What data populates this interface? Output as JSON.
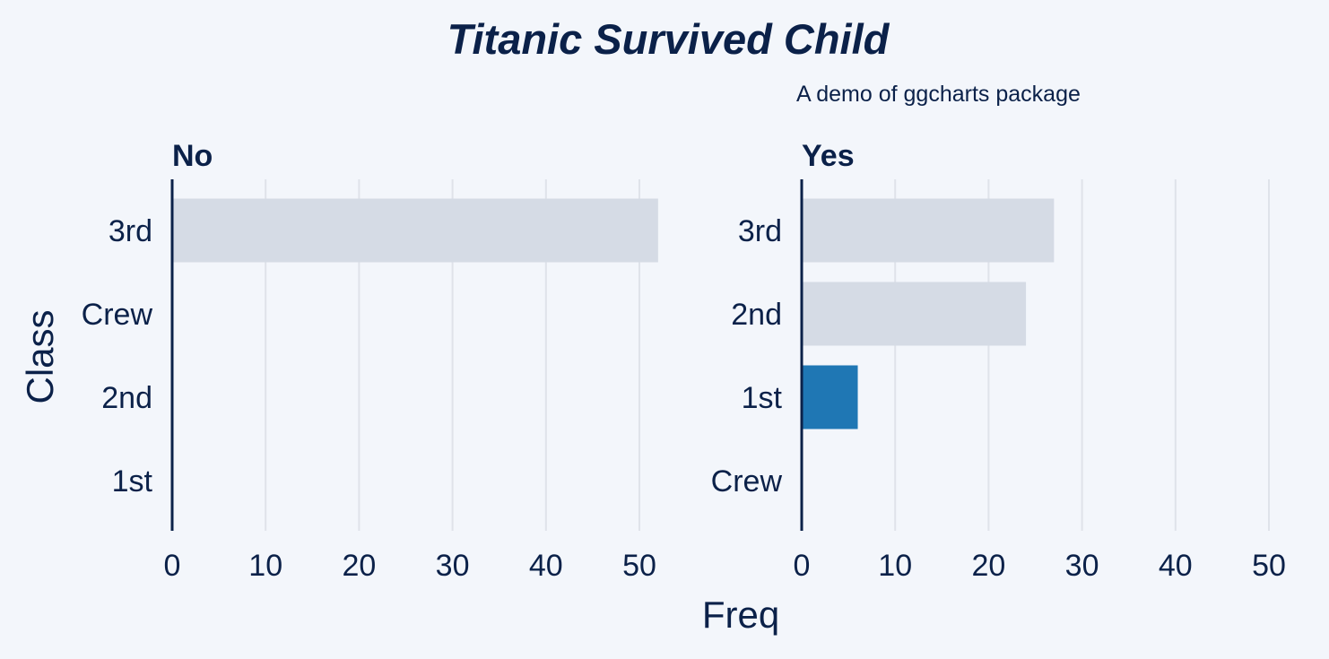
{
  "colors": {
    "background": "#f3f6fb",
    "text": "#0b2149",
    "grid": "#dfe3ea",
    "bar_default": "#d5dbe5",
    "bar_highlight": "#1f77b4",
    "axis_line": "#0b2149"
  },
  "chart_data": {
    "type": "bar",
    "orientation": "horizontal",
    "title": "Titanic Survived Child",
    "subtitle": "A demo of ggcharts package",
    "xlabel": "Freq",
    "ylabel": "Class",
    "xlim": [
      0,
      52
    ],
    "x_ticks": [
      0,
      10,
      20,
      30,
      40,
      50
    ],
    "grid": "vertical",
    "highlight": "1st",
    "panels": [
      {
        "facet": "No",
        "categories": [
          "3rd",
          "Crew",
          "2nd",
          "1st"
        ],
        "values": [
          52,
          0,
          0,
          0
        ]
      },
      {
        "facet": "Yes",
        "categories": [
          "3rd",
          "2nd",
          "1st",
          "Crew"
        ],
        "values": [
          27,
          24,
          6,
          0
        ]
      }
    ]
  }
}
